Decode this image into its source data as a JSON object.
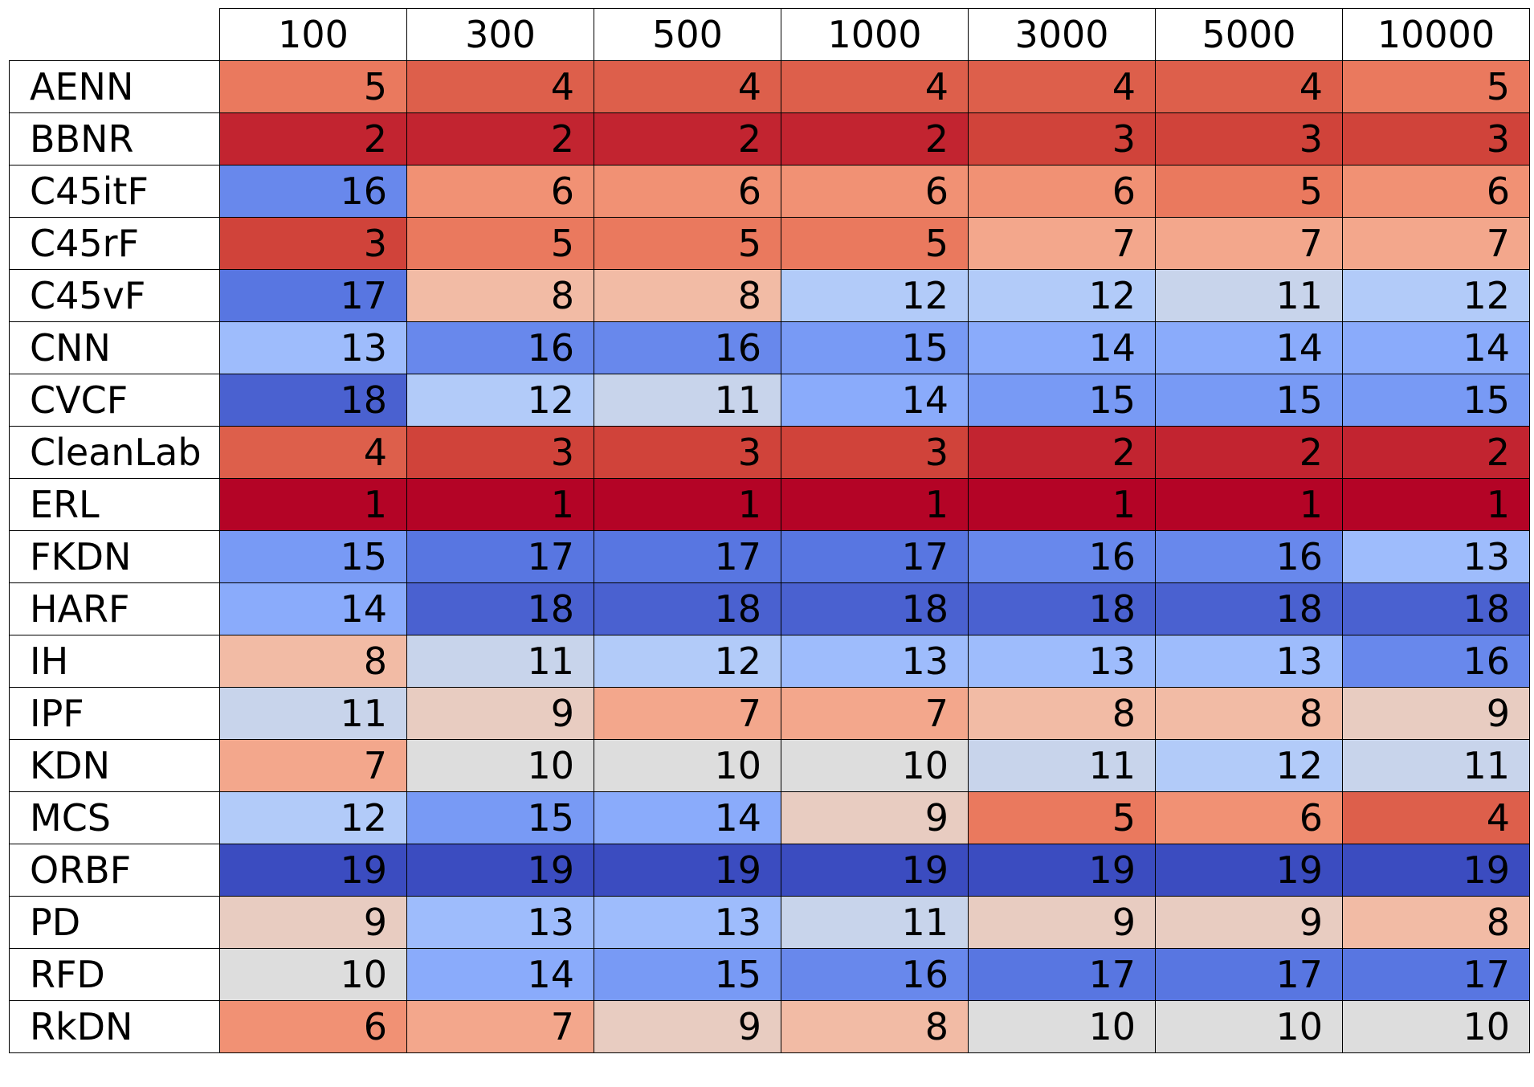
{
  "chart_data": {
    "type": "heatmap",
    "columns": [
      "100",
      "300",
      "500",
      "1000",
      "3000",
      "5000",
      "10000"
    ],
    "rows": [
      "AENN",
      "BBNR",
      "C45itF",
      "C45rF",
      "C45vF",
      "CNN",
      "CVCF",
      "CleanLab",
      "ERL",
      "FKDN",
      "HARF",
      "IH",
      "IPF",
      "KDN",
      "MCS",
      "ORBF",
      "PD",
      "RFD",
      "RkDN"
    ],
    "values": [
      [
        5,
        4,
        4,
        4,
        4,
        4,
        5
      ],
      [
        2,
        2,
        2,
        2,
        3,
        3,
        3
      ],
      [
        16,
        6,
        6,
        6,
        6,
        5,
        6
      ],
      [
        3,
        5,
        5,
        5,
        7,
        7,
        7
      ],
      [
        17,
        8,
        8,
        12,
        12,
        11,
        12
      ],
      [
        13,
        16,
        16,
        15,
        14,
        14,
        14
      ],
      [
        18,
        12,
        11,
        14,
        15,
        15,
        15
      ],
      [
        4,
        3,
        3,
        3,
        2,
        2,
        2
      ],
      [
        1,
        1,
        1,
        1,
        1,
        1,
        1
      ],
      [
        15,
        17,
        17,
        17,
        16,
        16,
        13
      ],
      [
        14,
        18,
        18,
        18,
        18,
        18,
        18
      ],
      [
        8,
        11,
        12,
        13,
        13,
        13,
        16
      ],
      [
        11,
        9,
        7,
        7,
        8,
        8,
        9
      ],
      [
        7,
        10,
        10,
        10,
        11,
        12,
        11
      ],
      [
        12,
        15,
        14,
        9,
        5,
        6,
        4
      ],
      [
        19,
        19,
        19,
        19,
        19,
        19,
        19
      ],
      [
        9,
        13,
        13,
        11,
        9,
        9,
        8
      ],
      [
        10,
        14,
        15,
        16,
        17,
        17,
        17
      ],
      [
        6,
        7,
        9,
        8,
        10,
        10,
        10
      ]
    ],
    "colormap": "coolwarm_reversed",
    "value_range": [
      1,
      19
    ]
  }
}
